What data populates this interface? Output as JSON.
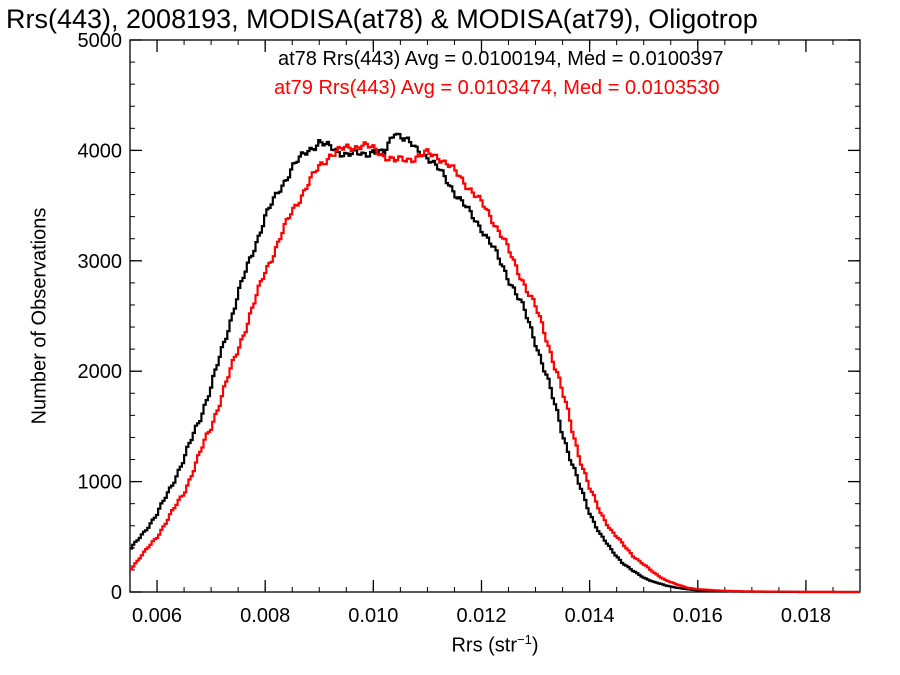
{
  "chart_data": {
    "type": "line",
    "title": "Rrs(443), 2008193, MODISA(at78) & MODISA(at79), Oligotrop",
    "xlabel": "Rrs (str",
    "xlabel_sup": "−1",
    "xlabel_close": ")",
    "ylabel": "Number of Observations",
    "xlim": [
      0.0055,
      0.019
    ],
    "ylim": [
      0,
      5000
    ],
    "xticks": [
      0.006,
      0.008,
      0.01,
      0.012,
      0.014,
      0.016,
      0.018
    ],
    "xtick_labels": [
      "0.006",
      "0.008",
      "0.010",
      "0.012",
      "0.014",
      "0.016",
      "0.018"
    ],
    "yticks": [
      0,
      1000,
      2000,
      3000,
      4000,
      5000
    ],
    "ytick_labels": [
      "0",
      "1000",
      "2000",
      "3000",
      "4000",
      "5000"
    ],
    "grid": false,
    "step": true,
    "annotations": [
      {
        "text": "at78 Rrs(443) Avg = 0.0100194, Med = 0.0100397",
        "color": "#000000"
      },
      {
        "text": "at79 Rrs(443) Avg = 0.0103474, Med = 0.0103530",
        "color": "#ff0000"
      }
    ],
    "series": [
      {
        "color": "#000000",
        "x": [
          0.0055,
          0.006,
          0.0065,
          0.007,
          0.0075,
          0.008,
          0.0085,
          0.0088,
          0.009,
          0.0092,
          0.0095,
          0.0098,
          0.01,
          0.0102,
          0.0104,
          0.0106,
          0.0108,
          0.011,
          0.0112,
          0.0114,
          0.0116,
          0.0118,
          0.012,
          0.0122,
          0.0124,
          0.0126,
          0.0128,
          0.013,
          0.0132,
          0.0134,
          0.0136,
          0.0138,
          0.014,
          0.0142,
          0.0144,
          0.0146,
          0.0148,
          0.015,
          0.0152,
          0.0154,
          0.0156,
          0.0158,
          0.016,
          0.0165,
          0.017,
          0.018,
          0.019
        ],
        "y": [
          380,
          700,
          1200,
          1850,
          2700,
          3400,
          3850,
          4000,
          4080,
          4020,
          3970,
          3960,
          4000,
          3960,
          4180,
          4100,
          4000,
          3950,
          3830,
          3700,
          3560,
          3420,
          3300,
          3130,
          2940,
          2750,
          2540,
          2270,
          1960,
          1620,
          1280,
          980,
          720,
          520,
          380,
          270,
          190,
          130,
          90,
          60,
          40,
          25,
          15,
          6,
          3,
          0,
          0
        ]
      },
      {
        "color": "#ff0000",
        "x": [
          0.0055,
          0.006,
          0.0065,
          0.007,
          0.0075,
          0.008,
          0.0085,
          0.0088,
          0.009,
          0.0092,
          0.0095,
          0.0098,
          0.01,
          0.0102,
          0.0104,
          0.0106,
          0.0108,
          0.011,
          0.0112,
          0.0114,
          0.0116,
          0.0118,
          0.012,
          0.0122,
          0.0124,
          0.0126,
          0.0128,
          0.013,
          0.0132,
          0.0134,
          0.0136,
          0.0138,
          0.014,
          0.0142,
          0.0144,
          0.0146,
          0.0148,
          0.015,
          0.0152,
          0.0154,
          0.0156,
          0.0158,
          0.016,
          0.0165,
          0.017,
          0.018,
          0.019
        ],
        "y": [
          200,
          500,
          900,
          1500,
          2200,
          2900,
          3450,
          3700,
          3850,
          3960,
          4020,
          4050,
          4010,
          3960,
          3900,
          3920,
          3940,
          3970,
          3950,
          3860,
          3760,
          3650,
          3520,
          3380,
          3210,
          2980,
          2790,
          2580,
          2300,
          1990,
          1620,
          1250,
          940,
          720,
          560,
          440,
          330,
          250,
          170,
          110,
          70,
          40,
          25,
          10,
          5,
          1,
          0
        ]
      }
    ]
  }
}
